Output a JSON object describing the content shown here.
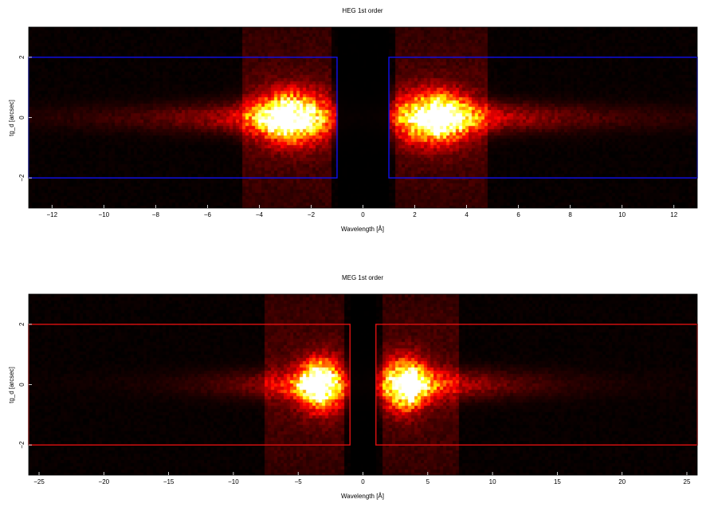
{
  "chart_data": [
    {
      "type": "heatmap",
      "title": "HEG 1st order",
      "xlabel": "Wavelength [Å]",
      "ylabel": "tg_d [arcsec]",
      "xlim": [
        -12.9,
        12.9
      ],
      "ylim": [
        -3.0,
        3.0
      ],
      "xticks": [
        "−12",
        "−10",
        "−8",
        "−6",
        "−4",
        "−2",
        "0",
        "2",
        "4",
        "6",
        "8",
        "10",
        "12"
      ],
      "xtick_values": [
        -12,
        -10,
        -8,
        -6,
        -4,
        -2,
        0,
        2,
        4,
        6,
        8,
        10,
        12
      ],
      "yticks": [
        "−2",
        "0",
        "2"
      ],
      "ytick_values": [
        -2,
        0,
        2
      ],
      "colormap": "hot",
      "background": "#000000",
      "gap": [
        -1.0,
        1.0
      ],
      "bright_spots": [
        {
          "center_x": -2.7,
          "center_y": 0.0,
          "width_x": 0.9,
          "width_y": 0.55,
          "tail_x": -4.2,
          "peak": 1.0
        },
        {
          "center_x": 2.7,
          "center_y": 0.0,
          "width_x": 0.9,
          "width_y": 0.55,
          "tail_x": 4.5,
          "peak": 1.0
        }
      ],
      "vertical_bands": [
        [
          -4.6,
          -1.2
        ],
        [
          1.2,
          4.8
        ]
      ],
      "regions": [
        {
          "x": [
            -12.9,
            -1.0
          ],
          "y": [
            -2.0,
            2.0
          ],
          "color": "#1010ee"
        },
        {
          "x": [
            1.0,
            12.9
          ],
          "y": [
            -2.0,
            2.0
          ],
          "color": "#1010ee"
        }
      ]
    },
    {
      "type": "heatmap",
      "title": "MEG 1st order",
      "xlabel": "Wavelength [Å]",
      "ylabel": "tg_d [arcsec]",
      "xlim": [
        -25.8,
        25.8
      ],
      "ylim": [
        -3.0,
        3.0
      ],
      "xticks": [
        "−25",
        "−20",
        "−15",
        "−10",
        "−5",
        "0",
        "5",
        "10",
        "15",
        "20",
        "25"
      ],
      "xtick_values": [
        -25,
        -20,
        -15,
        -10,
        -5,
        0,
        5,
        10,
        15,
        20,
        25
      ],
      "yticks": [
        "−2",
        "0",
        "2"
      ],
      "ytick_values": [
        -2,
        0,
        2
      ],
      "colormap": "hot",
      "background": "#000000",
      "gap": [
        -1.0,
        1.0
      ],
      "bright_spots": [
        {
          "center_x": -3.2,
          "center_y": 0.0,
          "width_x": 1.1,
          "width_y": 0.55,
          "tail_x": -5.5,
          "peak": 1.0
        },
        {
          "center_x": 3.2,
          "center_y": 0.0,
          "width_x": 1.1,
          "width_y": 0.55,
          "tail_x": 6.5,
          "peak": 1.0
        }
      ],
      "vertical_bands": [
        [
          -7.5,
          -1.5
        ],
        [
          1.5,
          7.5
        ]
      ],
      "regions": [
        {
          "x": [
            -25.8,
            -1.0
          ],
          "y": [
            -2.0,
            2.0
          ],
          "color": "#dd1010"
        },
        {
          "x": [
            1.0,
            25.8
          ],
          "y": [
            -2.0,
            2.0
          ],
          "color": "#dd1010"
        }
      ]
    }
  ]
}
